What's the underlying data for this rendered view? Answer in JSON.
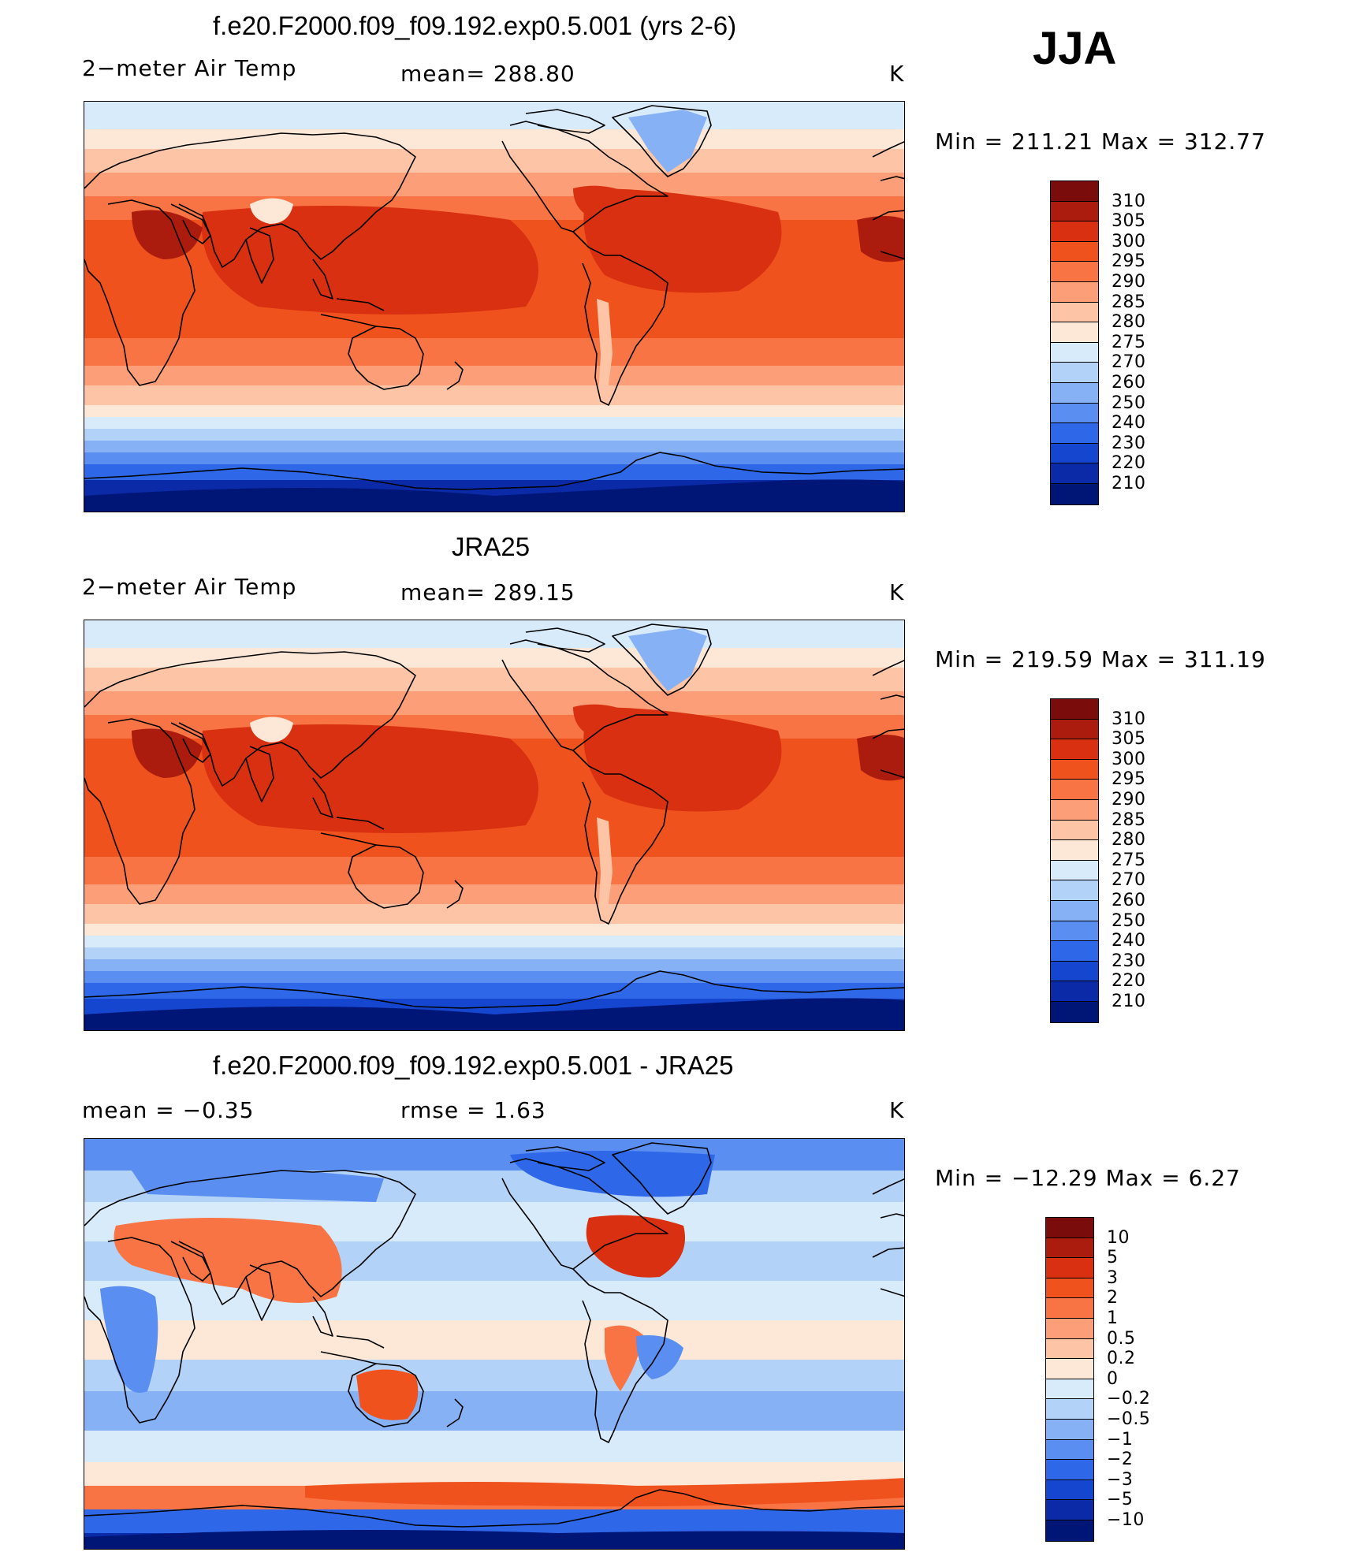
{
  "season": "JJA",
  "panels": [
    {
      "title": "f.e20.F2000.f09_f09.192.exp0.5.001 (yrs 2-6)",
      "variable": "2−meter Air Temp",
      "stat1": "mean=  288.80",
      "stat2": "",
      "units": "K",
      "minmax": "Min  =  211.21  Max  =  312.77",
      "field": "model",
      "colorbar": {
        "labels": [
          "310",
          "305",
          "300",
          "295",
          "290",
          "285",
          "280",
          "275",
          "270",
          "260",
          "250",
          "240",
          "230",
          "220",
          "210"
        ],
        "colors": [
          "#7b0c0c",
          "#ac1c0e",
          "#d83010",
          "#f0521e",
          "#f97444",
          "#fc9f78",
          "#fdc5a6",
          "#fde8d8",
          "#d8ebfb",
          "#b3d2f8",
          "#86b2f5",
          "#5a8ef0",
          "#2e68e8",
          "#1546cf",
          "#0a2aa8",
          "#001677"
        ]
      }
    },
    {
      "title": "JRA25",
      "variable": "2−meter Air Temp",
      "stat1": "mean=  289.15",
      "stat2": "",
      "units": "K",
      "minmax": "Min  =  219.59  Max  =  311.19",
      "field": "obs",
      "colorbar": {
        "labels": [
          "310",
          "305",
          "300",
          "295",
          "290",
          "285",
          "280",
          "275",
          "270",
          "260",
          "250",
          "240",
          "230",
          "220",
          "210"
        ],
        "colors": [
          "#7b0c0c",
          "#ac1c0e",
          "#d83010",
          "#f0521e",
          "#f97444",
          "#fc9f78",
          "#fdc5a6",
          "#fde8d8",
          "#d8ebfb",
          "#b3d2f8",
          "#86b2f5",
          "#5a8ef0",
          "#2e68e8",
          "#1546cf",
          "#0a2aa8",
          "#001677"
        ]
      }
    },
    {
      "title": "f.e20.F2000.f09_f09.192.exp0.5.001 - JRA25",
      "variable": "",
      "stat1": "mean  =     −0.35",
      "stat2": "rmse  =      1.63",
      "units": "K",
      "minmax": "Min  =  −12.29  Max  =       6.27",
      "field": "diff",
      "colorbar": {
        "labels": [
          "10",
          "5",
          "3",
          "2",
          "1",
          "0.5",
          "0.2",
          "0",
          "−0.2",
          "−0.5",
          "−1",
          "−2",
          "−3",
          "−5",
          "−10"
        ],
        "colors": [
          "#7b0c0c",
          "#ac1c0e",
          "#d83010",
          "#f0521e",
          "#f97444",
          "#fc9f78",
          "#fdc5a6",
          "#fde8d8",
          "#d8ebfb",
          "#b3d2f8",
          "#86b2f5",
          "#5a8ef0",
          "#2e68e8",
          "#1546cf",
          "#0a2aa8",
          "#001677"
        ]
      }
    }
  ]
}
